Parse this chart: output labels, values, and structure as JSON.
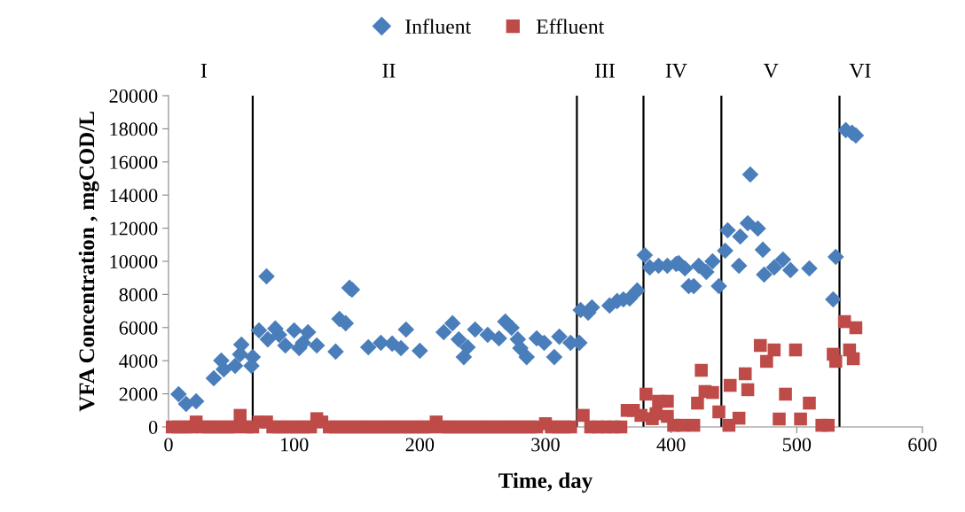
{
  "chart_data": {
    "type": "scatter",
    "xlabel": "Time, day",
    "ylabel": "VFA Concentration , mgCOD/L",
    "xlim": [
      0,
      600
    ],
    "xticks": [
      0,
      100,
      200,
      300,
      400,
      500,
      600
    ],
    "ylim": [
      0,
      20000
    ],
    "yticks": [
      0,
      2000,
      4000,
      6000,
      8000,
      10000,
      12000,
      14000,
      16000,
      18000,
      20000
    ],
    "grid": false,
    "legend": "top",
    "series": [
      {
        "name": "Influent",
        "color": "#4a7ebb",
        "marker": "diamond",
        "x": [
          8,
          14,
          22,
          36,
          42,
          44,
          53,
          58,
          57,
          67,
          66,
          72,
          78,
          79,
          85,
          88,
          93,
          100,
          104,
          107,
          111,
          118,
          133,
          136,
          141,
          144,
          146,
          159,
          169,
          178,
          185,
          189,
          200,
          219,
          226,
          231,
          238,
          235,
          244,
          254,
          263,
          268,
          273,
          278,
          280,
          285,
          293,
          299,
          307,
          311,
          320,
          327,
          328,
          334,
          337,
          351,
          357,
          362,
          367,
          373,
          379,
          383,
          390,
          397,
          404,
          406,
          411,
          414,
          418,
          422,
          428,
          433,
          438,
          443,
          445,
          454,
          455,
          461,
          463,
          469,
          473,
          474,
          482,
          489,
          495,
          510,
          529,
          531,
          539,
          544,
          547
        ],
        "values": [
          1980,
          1390,
          1550,
          2940,
          4010,
          3480,
          3690,
          4970,
          4390,
          4220,
          3690,
          5830,
          9090,
          5290,
          5940,
          5560,
          4920,
          5830,
          4760,
          5080,
          5720,
          4920,
          4550,
          6520,
          6260,
          8400,
          8290,
          4810,
          5080,
          5030,
          4760,
          5880,
          4600,
          5720,
          6260,
          5290,
          4810,
          4220,
          5880,
          5560,
          5350,
          6360,
          5990,
          5290,
          4760,
          4220,
          5350,
          5080,
          4220,
          5450,
          5080,
          5080,
          7060,
          6900,
          7220,
          7330,
          7600,
          7700,
          7760,
          8240,
          10370,
          9630,
          9730,
          9730,
          9840,
          9890,
          9570,
          8500,
          8500,
          9730,
          9360,
          10000,
          8500,
          10640,
          11870,
          9730,
          11500,
          12300,
          15240,
          11980,
          10700,
          9200,
          9630,
          10110,
          9470,
          9570,
          7700,
          10270,
          17920,
          17760,
          17600
        ]
      },
      {
        "name": "Effluent",
        "color": "#be4b48",
        "marker": "square",
        "x": [
          3,
          8,
          13,
          18,
          22,
          27,
          32,
          37,
          42,
          47,
          52,
          57,
          62,
          67,
          72,
          78,
          83,
          88,
          93,
          98,
          103,
          108,
          113,
          118,
          122,
          128,
          133,
          138,
          143,
          148,
          153,
          158,
          163,
          168,
          173,
          178,
          183,
          188,
          193,
          198,
          203,
          208,
          213,
          218,
          223,
          228,
          233,
          238,
          243,
          248,
          253,
          258,
          263,
          268,
          273,
          278,
          283,
          288,
          293,
          300,
          305,
          310,
          315,
          320,
          330,
          336,
          342,
          348,
          354,
          360,
          365,
          370,
          376,
          380,
          385,
          388,
          390,
          397,
          397,
          402,
          409,
          418,
          421,
          424,
          427,
          433,
          438,
          446,
          447,
          454,
          459,
          461,
          471,
          476,
          482,
          486,
          491,
          499,
          503,
          510,
          520,
          525,
          529,
          531,
          538,
          542,
          545,
          547
        ],
        "values": [
          0,
          0,
          0,
          0,
          300,
          0,
          0,
          0,
          0,
          0,
          0,
          700,
          0,
          0,
          300,
          300,
          0,
          0,
          0,
          0,
          0,
          0,
          0,
          500,
          300,
          0,
          0,
          0,
          0,
          0,
          0,
          0,
          0,
          0,
          0,
          0,
          0,
          0,
          0,
          0,
          0,
          0,
          300,
          0,
          0,
          0,
          0,
          0,
          0,
          0,
          0,
          0,
          0,
          0,
          0,
          0,
          0,
          0,
          0,
          200,
          0,
          0,
          0,
          0,
          700,
          0,
          0,
          0,
          0,
          0,
          1000,
          1000,
          700,
          1980,
          500,
          800,
          1550,
          1550,
          640,
          100,
          100,
          100,
          1440,
          3420,
          2140,
          2080,
          910,
          100,
          2510,
          530,
          3210,
          2250,
          4920,
          3960,
          4650,
          480,
          1980,
          4650,
          480,
          1440,
          100,
          100,
          4390,
          3960,
          6360,
          4650,
          4120,
          5990
        ]
      }
    ],
    "ref_lines": [
      {
        "axis": "x",
        "value": 67,
        "color": "#000000"
      },
      {
        "axis": "x",
        "value": 325,
        "color": "#000000"
      },
      {
        "axis": "x",
        "value": 378,
        "color": "#000000"
      },
      {
        "axis": "x",
        "value": 440,
        "color": "#000000"
      },
      {
        "axis": "x",
        "value": 534,
        "color": "#000000"
      }
    ],
    "annotations": [
      "I",
      "II",
      "III",
      "IV",
      "V",
      "VI"
    ]
  }
}
